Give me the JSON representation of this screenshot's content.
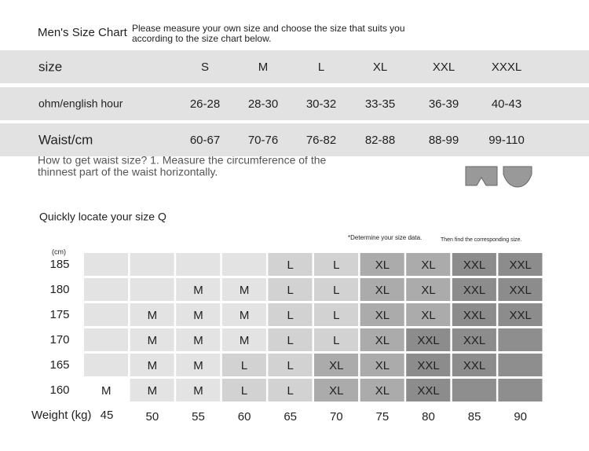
{
  "header": {
    "title": "Men's Size Chart",
    "note_lines": [
      "Please measure your own size and choose the size that suits you",
      "according to the size chart below."
    ]
  },
  "size_table": {
    "rows": [
      [
        "size",
        "S",
        "M",
        "L",
        "XL",
        "XXL",
        "XXXL"
      ],
      [
        "ohm/english hour",
        "26-28",
        "28-30",
        "30-32",
        "33-35",
        "36-39",
        "40-43"
      ],
      [
        "Waist/cm",
        "60-67",
        "70-76",
        "76-82",
        "82-88",
        "88-99",
        "99-110"
      ]
    ]
  },
  "waist_note": [
    "How to get waist size? 1. Measure the circumference of the",
    "thinnest part of the waist horizontally."
  ],
  "locate": {
    "title": "Quickly locate your size Q",
    "hint": "*Determine your size data.",
    "hint2": "Then find the corresponding size.",
    "height_unit": "(cm)",
    "weight_label": "Weight (kg)",
    "heights": [
      "185",
      "180",
      "175",
      "170",
      "165",
      "160"
    ],
    "weights": [
      "45",
      "50",
      "55",
      "60",
      "65",
      "70",
      "75",
      "80",
      "85",
      "90"
    ],
    "cells": [
      [
        null,
        null,
        null,
        null,
        "L",
        "L",
        "XL",
        "XL",
        "XXL",
        "XXL"
      ],
      [
        null,
        null,
        "M",
        "M",
        "L",
        "L",
        "XL",
        "XL",
        "XXL",
        "XXL"
      ],
      [
        null,
        "M",
        "M",
        "M",
        "L",
        "L",
        "XL",
        "XL",
        "XXL",
        "XXL"
      ],
      [
        null,
        "M",
        "M",
        "M",
        "L",
        "L",
        "XL",
        "XXL",
        "XXL",
        null
      ],
      [
        null,
        "M",
        "M",
        "L",
        "L",
        "XL",
        "XL",
        "XXL",
        "XXL",
        null
      ],
      [
        "M",
        "M",
        "M",
        "L",
        "L",
        "XL",
        "XL",
        "XXL",
        null,
        null
      ]
    ]
  }
}
